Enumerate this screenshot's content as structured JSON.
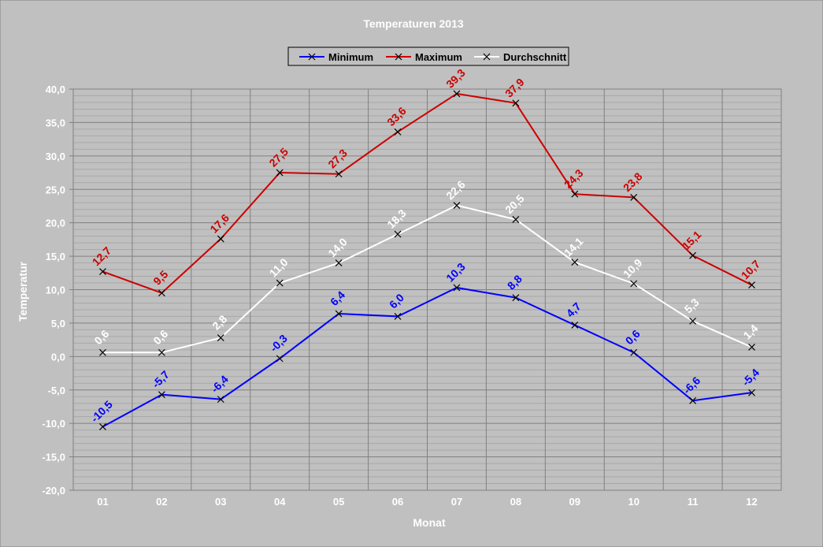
{
  "chart_data": {
    "type": "line",
    "title": "Temperaturen 2013",
    "xlabel": "Monat",
    "ylabel": "Temperatur",
    "categories": [
      "01",
      "02",
      "03",
      "04",
      "05",
      "06",
      "07",
      "08",
      "09",
      "10",
      "11",
      "12"
    ],
    "ylim": [
      -20,
      40
    ],
    "yticks": [
      "-20,0",
      "-15,0",
      "-10,0",
      "-5,0",
      "0,0",
      "5,0",
      "10,0",
      "15,0",
      "20,0",
      "25,0",
      "30,0",
      "35,0",
      "40,0"
    ],
    "grid": true,
    "legend_position": "top-center",
    "series": [
      {
        "name": "Minimum",
        "color": "#0000ff",
        "values": [
          -10.5,
          -5.7,
          -6.4,
          -0.3,
          6.4,
          6.0,
          10.3,
          8.8,
          4.7,
          0.6,
          -6.6,
          -5.4
        ],
        "labels": [
          "-10,5",
          "-5,7",
          "-6,4",
          "-0,3",
          "6,4",
          "6,0",
          "10,3",
          "8,8",
          "4,7",
          "0,6",
          "-6,6",
          "-5,4"
        ]
      },
      {
        "name": "Maximum",
        "color": "#cc0000",
        "values": [
          12.7,
          9.5,
          17.6,
          27.5,
          27.3,
          33.6,
          39.3,
          37.9,
          24.3,
          23.8,
          15.1,
          10.7
        ],
        "labels": [
          "12,7",
          "9,5",
          "17,6",
          "27,5",
          "27,3",
          "33,6",
          "39,3",
          "37,9",
          "24,3",
          "23,8",
          "15,1",
          "10,7"
        ]
      },
      {
        "name": "Durchschnitt",
        "color": "#ffffff",
        "values": [
          0.6,
          0.6,
          2.8,
          11.0,
          14.0,
          18.3,
          22.6,
          20.5,
          14.1,
          10.9,
          5.3,
          1.4
        ],
        "labels": [
          "0,6",
          "0,6",
          "2,8",
          "11,0",
          "14,0",
          "18,3",
          "22,6",
          "20,5",
          "14,1",
          "10,9",
          "5,3",
          "1,4"
        ]
      }
    ]
  }
}
